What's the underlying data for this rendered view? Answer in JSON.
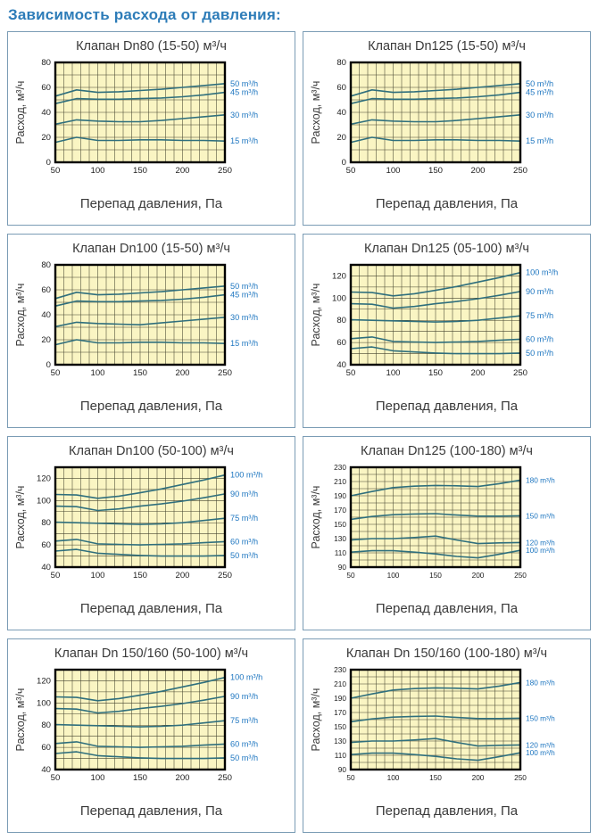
{
  "page_title": "Зависимость расхода от давления:",
  "colors": {
    "accent": "#2d7cb8",
    "panel_border": "#7b9cb5",
    "plot_bg": "#faf5c3",
    "grid_line": "#44442e",
    "plot_border": "#000000",
    "series_line": "#2f6f7d",
    "series_label": "#1e76c0",
    "tick_text": "#222222",
    "axis_text": "#3a3a3a"
  },
  "chart_data": [
    {
      "type": "line",
      "title": "Клапан Dn80 (15-50) м³/ч",
      "xlabel": "Перепад давления, Па",
      "ylabel": "Расход, м³/ч",
      "x": [
        50,
        75,
        100,
        125,
        150,
        175,
        200,
        225,
        250
      ],
      "xlim": [
        50,
        250
      ],
      "ylim": [
        0,
        80
      ],
      "xticks": [
        50,
        100,
        150,
        200,
        250
      ],
      "yticks": [
        0,
        20,
        40,
        60,
        80
      ],
      "grid_step_x": 10,
      "grid_step_y": 10,
      "legend_position": "right",
      "series": [
        {
          "name": "50 m³/h",
          "values": [
            53,
            58,
            56,
            56.5,
            57.5,
            58.5,
            60,
            61.5,
            63
          ]
        },
        {
          "name": "45 m³/h",
          "values": [
            47,
            51,
            50.5,
            50.5,
            51,
            51.5,
            52.5,
            54,
            56
          ]
        },
        {
          "name": "30 m³/h",
          "values": [
            30.5,
            34,
            33,
            32.5,
            32.5,
            33.5,
            35,
            36.5,
            38
          ]
        },
        {
          "name": "15 m³/h",
          "values": [
            16,
            20,
            17.5,
            17.5,
            18,
            18,
            17.5,
            17.5,
            17
          ]
        }
      ]
    },
    {
      "type": "line",
      "title": "Клапан Dn125 (15-50) м³/ч",
      "xlabel": "Перепад давления, Па",
      "ylabel": "Расход, м³/ч",
      "x": [
        50,
        75,
        100,
        125,
        150,
        175,
        200,
        225,
        250
      ],
      "xlim": [
        50,
        250
      ],
      "ylim": [
        0,
        80
      ],
      "xticks": [
        50,
        100,
        150,
        200,
        250
      ],
      "yticks": [
        0,
        20,
        40,
        60,
        80
      ],
      "grid_step_x": 10,
      "grid_step_y": 10,
      "legend_position": "right",
      "series": [
        {
          "name": "50 m³/h",
          "values": [
            53,
            58,
            56,
            56.5,
            57.5,
            58.5,
            60,
            61.5,
            63
          ]
        },
        {
          "name": "45 m³/h",
          "values": [
            47,
            51,
            50.5,
            50.5,
            51,
            51.5,
            52.5,
            54,
            56
          ]
        },
        {
          "name": "30 m³/h",
          "values": [
            30.5,
            34,
            33,
            32.5,
            32.5,
            33.5,
            35,
            36.5,
            38
          ]
        },
        {
          "name": "15 m³/h",
          "values": [
            16,
            20,
            17.5,
            17.5,
            18,
            18,
            17.5,
            17.5,
            17
          ]
        }
      ]
    },
    {
      "type": "line",
      "title": "Клапан Dn100 (15-50) м³/ч",
      "xlabel": "Перепад давления, Па",
      "ylabel": "Расход, м³/ч",
      "x": [
        50,
        75,
        100,
        125,
        150,
        175,
        200,
        225,
        250
      ],
      "xlim": [
        50,
        250
      ],
      "ylim": [
        0,
        80
      ],
      "xticks": [
        50,
        100,
        150,
        200,
        250
      ],
      "yticks": [
        0,
        20,
        40,
        60,
        80
      ],
      "grid_step_x": 10,
      "grid_step_y": 10,
      "legend_position": "right",
      "series": [
        {
          "name": "50 m³/h",
          "values": [
            53,
            58,
            56,
            56.5,
            57.5,
            58.5,
            60,
            61.5,
            63
          ]
        },
        {
          "name": "45 m³/h",
          "values": [
            47,
            51,
            50.5,
            50.5,
            51,
            51.5,
            52.5,
            54,
            56
          ]
        },
        {
          "name": "30 m³/h",
          "values": [
            30.5,
            34,
            33,
            32.5,
            32,
            33.5,
            35,
            36.5,
            38
          ]
        },
        {
          "name": "15 m³/h",
          "values": [
            16,
            20,
            17.5,
            17.5,
            18,
            18,
            17.5,
            17.5,
            17
          ]
        }
      ]
    },
    {
      "type": "line",
      "title": "Клапан Dn125 (05-100) м³/ч",
      "xlabel": "Перепад давления, Па",
      "ylabel": "Расход, м³/ч",
      "x": [
        50,
        75,
        100,
        125,
        150,
        175,
        200,
        225,
        250
      ],
      "xlim": [
        50,
        250
      ],
      "ylim": [
        40,
        130
      ],
      "xticks": [
        50,
        100,
        150,
        200,
        250
      ],
      "yticks": [
        40,
        60,
        80,
        100,
        120
      ],
      "grid_step_x": 10,
      "grid_step_y": 10,
      "legend_position": "right",
      "series": [
        {
          "name": "100 m³/h",
          "values": [
            105.5,
            105,
            102,
            104,
            107,
            110.5,
            114.5,
            118.5,
            123
          ]
        },
        {
          "name": "90 m³/h",
          "values": [
            95,
            94.5,
            91,
            92.5,
            95,
            97,
            99.5,
            102.5,
            106
          ]
        },
        {
          "name": "75 m³/h",
          "values": [
            80.5,
            80,
            79.5,
            79,
            78.5,
            79,
            80,
            82,
            84
          ]
        },
        {
          "name": "60 m³/h",
          "values": [
            63.5,
            65,
            61,
            60.5,
            60,
            60.5,
            61,
            62,
            63
          ]
        },
        {
          "name": "50 m³/h",
          "values": [
            54.5,
            56,
            52.5,
            51.5,
            50.5,
            50,
            50,
            50,
            50.5
          ]
        }
      ]
    },
    {
      "type": "line",
      "title": "Клапан Dn100 (50-100) м³/ч",
      "xlabel": "Перепад давления, Па",
      "ylabel": "Расход, м³/ч",
      "x": [
        50,
        75,
        100,
        125,
        150,
        175,
        200,
        225,
        250
      ],
      "xlim": [
        50,
        250
      ],
      "ylim": [
        40,
        130
      ],
      "xticks": [
        50,
        100,
        150,
        200,
        250
      ],
      "yticks": [
        40,
        60,
        80,
        100,
        120
      ],
      "grid_step_x": 10,
      "grid_step_y": 10,
      "legend_position": "right",
      "series": [
        {
          "name": "100 m³/h",
          "values": [
            105.5,
            105,
            102,
            104,
            107,
            110.5,
            114.5,
            118.5,
            123
          ]
        },
        {
          "name": "90 m³/h",
          "values": [
            95,
            94.5,
            91,
            92.5,
            95,
            97,
            99.5,
            102.5,
            106
          ]
        },
        {
          "name": "75 m³/h",
          "values": [
            80.5,
            80,
            79.5,
            79,
            78.5,
            79,
            80,
            82,
            84
          ]
        },
        {
          "name": "60 m³/h",
          "values": [
            63.5,
            65,
            61,
            60.5,
            60,
            60.5,
            61,
            62,
            63
          ]
        },
        {
          "name": "50 m³/h",
          "values": [
            54.5,
            56,
            52.5,
            51.5,
            50.5,
            50,
            50,
            50,
            50.5
          ]
        }
      ]
    },
    {
      "type": "line",
      "title": "Клапан Dn125 (100-180) м³/ч",
      "xlabel": "Перепад давления, Па",
      "ylabel": "Расход, м³/ч",
      "x": [
        50,
        75,
        100,
        125,
        150,
        175,
        200,
        225,
        250
      ],
      "xlim": [
        50,
        250
      ],
      "ylim": [
        90,
        230
      ],
      "xticks": [
        50,
        100,
        150,
        200,
        250
      ],
      "yticks": [
        90,
        110,
        130,
        150,
        170,
        190,
        210,
        230
      ],
      "grid_step_x": 10,
      "grid_step_y": 10,
      "legend_position": "right",
      "series": [
        {
          "name": "180 m³/h",
          "values": [
            190,
            196,
            201.5,
            203.5,
            204.5,
            204,
            203,
            207,
            212
          ]
        },
        {
          "name": "150 m³/h",
          "values": [
            157,
            161,
            163.5,
            164.5,
            165,
            163,
            161.5,
            161.5,
            162
          ]
        },
        {
          "name": "120 m³/h",
          "values": [
            128,
            130,
            130,
            131.5,
            133.5,
            128,
            123,
            124,
            124.5
          ]
        },
        {
          "name": "100 m³/h",
          "values": [
            111,
            113,
            113,
            111,
            108.5,
            105,
            103,
            108,
            113.5
          ]
        }
      ]
    },
    {
      "type": "line",
      "title": "Клапан Dn 150/160 (50-100) м³/ч",
      "xlabel": "Перепад давления, Па",
      "ylabel": "Расход, м³/ч",
      "x": [
        50,
        75,
        100,
        125,
        150,
        175,
        200,
        225,
        250
      ],
      "xlim": [
        50,
        250
      ],
      "ylim": [
        40,
        130
      ],
      "xticks": [
        50,
        100,
        150,
        200,
        250
      ],
      "yticks": [
        40,
        60,
        80,
        100,
        120
      ],
      "grid_step_x": 10,
      "grid_step_y": 10,
      "legend_position": "right",
      "series": [
        {
          "name": "100 m³/h",
          "values": [
            105.5,
            105,
            102,
            104,
            107,
            110.5,
            114.5,
            118.5,
            123
          ]
        },
        {
          "name": "90 m³/h",
          "values": [
            95,
            94.5,
            91,
            92.5,
            95,
            97,
            99.5,
            102.5,
            106
          ]
        },
        {
          "name": "75 m³/h",
          "values": [
            80.5,
            80,
            79.5,
            79,
            78.5,
            79,
            80,
            82,
            84
          ]
        },
        {
          "name": "60 m³/h",
          "values": [
            63.5,
            65,
            61,
            60.5,
            60,
            60.5,
            61,
            62,
            63
          ]
        },
        {
          "name": "50 m³/h",
          "values": [
            54.5,
            56,
            52.5,
            51.5,
            50.5,
            50,
            50,
            50,
            50.5
          ]
        }
      ]
    },
    {
      "type": "line",
      "title": "Клапан Dn 150/160 (100-180) м³/ч",
      "xlabel": "Перепад давления, Па",
      "ylabel": "Расход, м³/ч",
      "x": [
        50,
        75,
        100,
        125,
        150,
        175,
        200,
        225,
        250
      ],
      "xlim": [
        50,
        250
      ],
      "ylim": [
        90,
        230
      ],
      "xticks": [
        50,
        100,
        150,
        200,
        250
      ],
      "yticks": [
        90,
        110,
        130,
        150,
        170,
        190,
        210,
        230
      ],
      "grid_step_x": 10,
      "grid_step_y": 10,
      "legend_position": "right",
      "series": [
        {
          "name": "180 m³/h",
          "values": [
            190,
            196,
            201.5,
            203.5,
            204.5,
            204,
            203,
            207,
            212
          ]
        },
        {
          "name": "150 m³/h",
          "values": [
            157,
            161,
            163.5,
            164.5,
            165,
            163,
            161.5,
            161.5,
            162
          ]
        },
        {
          "name": "120 m³/h",
          "values": [
            128,
            130,
            130,
            131.5,
            133.5,
            128,
            123,
            124,
            124.5
          ]
        },
        {
          "name": "100 m³/h",
          "values": [
            111,
            113,
            113,
            111,
            108.5,
            105,
            103,
            108,
            113.5
          ]
        }
      ]
    }
  ]
}
